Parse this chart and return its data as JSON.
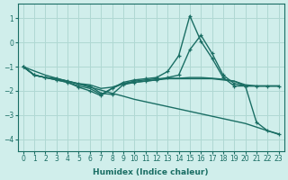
{
  "xlabel": "Humidex (Indice chaleur)",
  "xlim": [
    -0.5,
    23.5
  ],
  "ylim": [
    -4.5,
    1.6
  ],
  "yticks": [
    -4,
    -3,
    -2,
    -1,
    0,
    1
  ],
  "xticks": [
    0,
    1,
    2,
    3,
    4,
    5,
    6,
    7,
    8,
    9,
    10,
    11,
    12,
    13,
    14,
    15,
    16,
    17,
    18,
    19,
    20,
    21,
    22,
    23
  ],
  "bg_color": "#d0eeeb",
  "grid_color": "#b0d8d3",
  "line_color": "#1a6e64",
  "lines": [
    {
      "x": [
        0,
        1,
        2,
        3,
        4,
        5,
        6,
        7,
        8,
        9,
        10,
        11,
        12,
        13,
        14,
        15,
        16,
        17,
        18,
        19,
        20,
        21,
        22,
        23
      ],
      "y": [
        -1.0,
        -1.18,
        -1.35,
        -1.48,
        -1.6,
        -1.72,
        -1.85,
        -1.97,
        -2.1,
        -2.22,
        -2.35,
        -2.45,
        -2.55,
        -2.65,
        -2.75,
        -2.85,
        -2.95,
        -3.05,
        -3.15,
        -3.25,
        -3.35,
        -3.5,
        -3.65,
        -3.78
      ],
      "marker": false,
      "lw": 1.0
    },
    {
      "x": [
        0,
        1,
        2,
        3,
        4,
        5,
        6,
        7,
        8,
        9,
        10,
        11,
        12,
        13,
        14,
        15,
        16,
        17,
        18,
        19,
        20,
        21,
        22,
        23
      ],
      "y": [
        -1.0,
        -1.35,
        -1.45,
        -1.5,
        -1.6,
        -1.7,
        -1.75,
        -1.9,
        -1.85,
        -1.7,
        -1.65,
        -1.6,
        -1.55,
        -1.5,
        -1.5,
        -1.5,
        -1.5,
        -1.5,
        -1.55,
        -1.6,
        -1.75,
        -1.8,
        -1.8,
        -1.8
      ],
      "marker": false,
      "lw": 1.0
    },
    {
      "x": [
        0,
        1,
        2,
        3,
        4,
        5,
        6,
        7,
        8,
        9,
        10,
        11,
        12,
        13,
        14,
        15,
        16,
        17,
        18,
        19,
        20,
        21,
        22,
        23
      ],
      "y": [
        -1.0,
        -1.35,
        -1.45,
        -1.55,
        -1.65,
        -1.8,
        -1.9,
        -2.15,
        -1.9,
        -1.7,
        -1.6,
        -1.55,
        -1.5,
        -1.48,
        -1.48,
        -1.45,
        -1.45,
        -1.48,
        -1.52,
        -1.6,
        -1.8,
        -1.8,
        -1.8,
        -1.8
      ],
      "marker": false,
      "lw": 1.0
    },
    {
      "x": [
        0,
        1,
        2,
        3,
        4,
        5,
        6,
        7,
        8,
        9,
        10,
        11,
        12,
        13,
        14,
        15,
        16,
        17,
        18,
        19,
        20,
        21,
        22,
        23
      ],
      "y": [
        -1.0,
        -1.35,
        -1.45,
        -1.55,
        -1.65,
        -1.85,
        -2.0,
        -2.2,
        -1.9,
        -1.65,
        -1.55,
        -1.5,
        -1.45,
        -1.2,
        -0.55,
        1.1,
        0.05,
        -0.65,
        -1.45,
        -1.8,
        -1.8,
        -1.8,
        -1.8,
        -1.8
      ],
      "marker": true,
      "lw": 1.0
    },
    {
      "x": [
        0,
        1,
        2,
        3,
        4,
        5,
        6,
        7,
        8,
        9,
        10,
        11,
        12,
        13,
        14,
        15,
        16,
        17,
        18,
        19,
        20,
        21,
        22,
        23
      ],
      "y": [
        -1.0,
        -1.35,
        -1.45,
        -1.5,
        -1.6,
        -1.72,
        -1.8,
        -2.1,
        -2.15,
        -1.75,
        -1.65,
        -1.6,
        -1.55,
        -1.45,
        -1.35,
        -0.3,
        0.3,
        -0.45,
        -1.35,
        -1.7,
        -1.8,
        -3.3,
        -3.65,
        -3.8
      ],
      "marker": true,
      "lw": 1.0
    }
  ]
}
